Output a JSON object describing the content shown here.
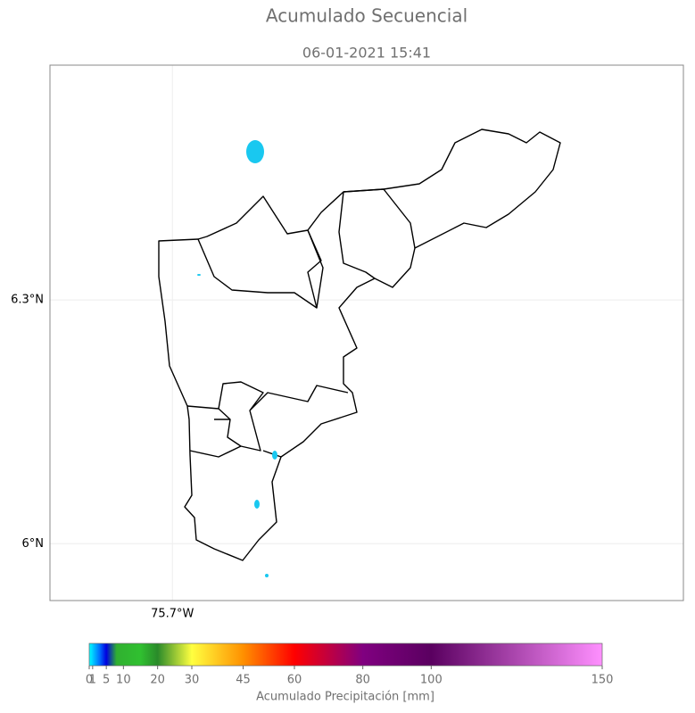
{
  "map": {
    "title": "Acumulado Secuencial",
    "subtitle": "06-01-2021 15:41",
    "lat_lim": [
      5.93,
      6.589
    ],
    "lon_lim": [
      -75.851,
      -75.07
    ],
    "lat_ticks": [
      {
        "value": 6.3,
        "label": "6.3°N"
      },
      {
        "value": 6,
        "label": "6°N"
      }
    ],
    "lon_ticks": [
      {
        "value": -75.7,
        "label": "75.7°W"
      }
    ],
    "grid": true,
    "colorbar": {
      "label": "Acumulado Precipitación [mm]",
      "lim": [
        0,
        150
      ],
      "ticks": [
        0,
        1,
        5,
        10,
        20,
        30,
        45,
        60,
        80,
        100,
        150
      ],
      "color_stops": [
        {
          "value": 0,
          "color": "#00ffff"
        },
        {
          "value": 3,
          "color": "#0070ff"
        },
        {
          "value": 5,
          "color": "#0000e0"
        },
        {
          "value": 8,
          "color": "#30b030"
        },
        {
          "value": 15,
          "color": "#30c030"
        },
        {
          "value": 20,
          "color": "#2a8a2a"
        },
        {
          "value": 30,
          "color": "#ffff40"
        },
        {
          "value": 45,
          "color": "#ff9000"
        },
        {
          "value": 60,
          "color": "#ff0000"
        },
        {
          "value": 70,
          "color": "#c00040"
        },
        {
          "value": 80,
          "color": "#800080"
        },
        {
          "value": 100,
          "color": "#5a0060"
        },
        {
          "value": 150,
          "color": "#ff90ff"
        }
      ]
    }
  }
}
